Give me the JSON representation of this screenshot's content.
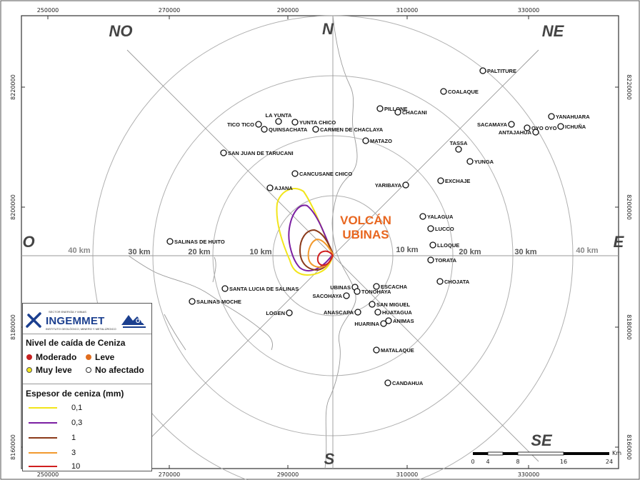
{
  "map": {
    "volcano_label": [
      "VOLCÁN",
      "UBINAS"
    ],
    "x_ticks": [
      "250000",
      "270000",
      "290000",
      "310000",
      "330000"
    ],
    "y_ticks": [
      "8220000",
      "8200000",
      "8180000",
      "8160000"
    ],
    "directions": {
      "n": "N",
      "s": "S",
      "e": "E",
      "o": "O",
      "no": "NO",
      "ne": "NE",
      "se": "SE"
    },
    "ring_labels": [
      "10 km",
      "20 km",
      "30 km",
      "40 km"
    ],
    "towns": [
      {
        "name": "PALTITURE"
      },
      {
        "name": "COALAQUE"
      },
      {
        "name": "PILLONE"
      },
      {
        "name": "CHACANI"
      },
      {
        "name": "LA YUNTA"
      },
      {
        "name": "YUNTA CHICO"
      },
      {
        "name": "TICO TICO"
      },
      {
        "name": "QUINSACHATA"
      },
      {
        "name": "CARMEN DE CHACLAYA"
      },
      {
        "name": "MATAZO"
      },
      {
        "name": "SAN JUAN DE TARUCANI"
      },
      {
        "name": "CANCUSANE CHICO"
      },
      {
        "name": "AJANA"
      },
      {
        "name": "YARIBAYA"
      },
      {
        "name": "EXCHAJE"
      },
      {
        "name": "TASSA"
      },
      {
        "name": "YUNGA"
      },
      {
        "name": "SACAMAYA"
      },
      {
        "name": "OYO OYO"
      },
      {
        "name": "ICHUÑA"
      },
      {
        "name": "YANAHUARA"
      },
      {
        "name": "ANTAJAHUA"
      },
      {
        "name": "YALAGUA"
      },
      {
        "name": "LUCCO"
      },
      {
        "name": "LLOQUE"
      },
      {
        "name": "TORATA"
      },
      {
        "name": "CHOJATA"
      },
      {
        "name": "SALINAS DE HUITO"
      },
      {
        "name": "SANTA LUCIA DE SALINAS"
      },
      {
        "name": "SALINAS MOCHE"
      },
      {
        "name": "LOGEN"
      },
      {
        "name": "UBINAS"
      },
      {
        "name": "SACOHAYA"
      },
      {
        "name": "TONOHAYA"
      },
      {
        "name": "ESCACHA"
      },
      {
        "name": "SAN MIGUEL"
      },
      {
        "name": "ANASCAPA"
      },
      {
        "name": "HUATAGUA"
      },
      {
        "name": "ANIMAS"
      },
      {
        "name": "HUARINA"
      },
      {
        "name": "MATALAQUE"
      },
      {
        "name": "CANDAHUA"
      }
    ],
    "scale": {
      "labels": [
        "0",
        "4",
        "8",
        "16",
        "24"
      ],
      "unit": "Km"
    },
    "colors": {
      "ash_01": "#f2e51a",
      "ash_03": "#7b1fa2",
      "ash_1": "#8b3a1a",
      "ash_3": "#f29a2e",
      "ash_10": "#d01f1f"
    }
  },
  "legend": {
    "logo": {
      "name": "INGEMMET",
      "sup": "SECTOR ENERGÍA Y MINAS",
      "sub": "INSTITUTO GEOLÓGICO, MINERO Y METALÚRGICO",
      "ovi": "OVI"
    },
    "fall_title": "Nivel de caída de Ceniza",
    "fall_items": [
      {
        "label": "Moderado",
        "color": "#c62020"
      },
      {
        "label": "Leve",
        "color": "#e06d1e"
      },
      {
        "label": "Muy leve",
        "color": "#f2e51a"
      },
      {
        "label": "No afectado",
        "color": "#ffffff"
      }
    ],
    "thickness_title": "Espesor de ceniza (mm)",
    "thickness_items": [
      {
        "label": "0,1",
        "color": "#f2e51a"
      },
      {
        "label": "0,3",
        "color": "#7b1fa2"
      },
      {
        "label": "1",
        "color": "#8b3a1a"
      },
      {
        "label": "3",
        "color": "#f29a2e"
      },
      {
        "label": "10",
        "color": "#d01f1f"
      }
    ]
  }
}
